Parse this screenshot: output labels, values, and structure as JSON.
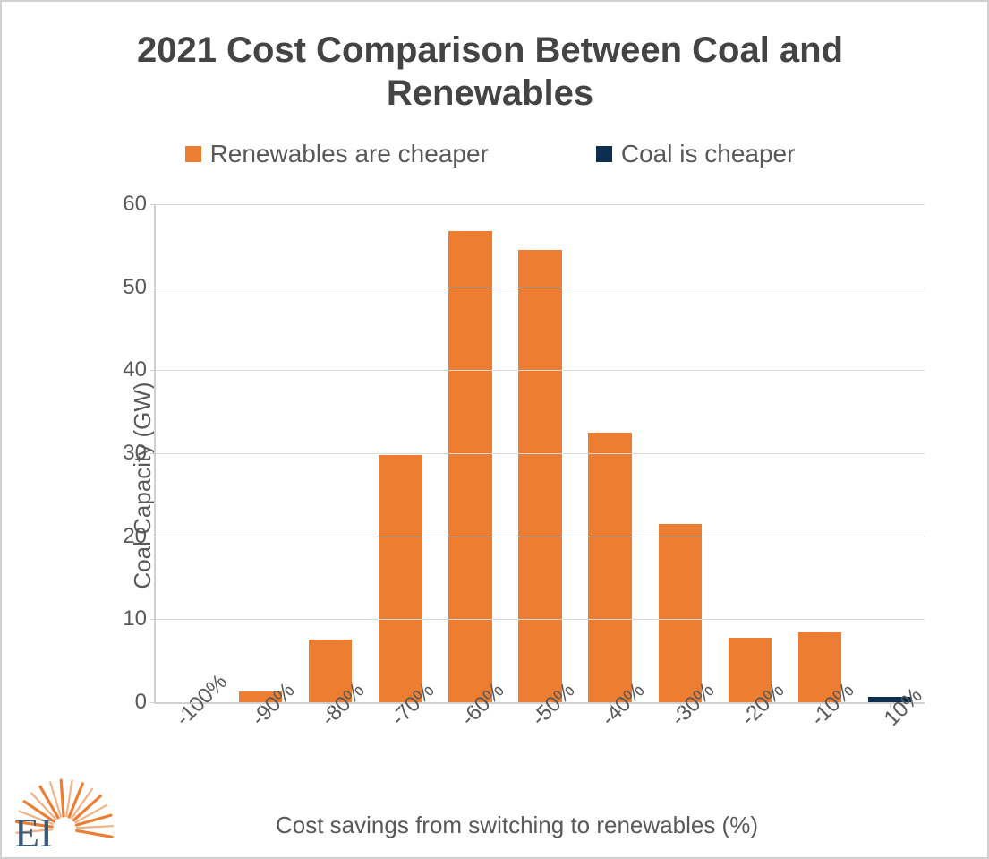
{
  "chart": {
    "type": "bar",
    "title": "2021 Cost Comparison Between Coal and Renewables",
    "title_fontsize": 40,
    "title_color": "#444444",
    "ylabel": "Coal Capacity (GW)",
    "xlabel": "Cost savings from switching to renewables (%)",
    "axis_label_fontsize": 26,
    "tick_fontsize": 24,
    "axis_label_color": "#595959",
    "background_color": "#ffffff",
    "border_color": "#d0d0d0",
    "grid_color": "#d9d9d9",
    "ylim": [
      0,
      60
    ],
    "ytick_step": 10,
    "yticks": [
      0,
      10,
      20,
      30,
      40,
      50,
      60
    ],
    "categories": [
      "-100%",
      "-90%",
      "-80%",
      "-70%",
      "-60%",
      "-50%",
      "-40%",
      "-30%",
      "-20%",
      "-10%",
      "10%"
    ],
    "series": [
      {
        "name": "Renewables are cheaper",
        "color": "#ed7d31",
        "values": [
          0,
          1.3,
          7.6,
          29.8,
          56.8,
          54.5,
          32.5,
          21.5,
          7.8,
          8.4,
          0
        ]
      },
      {
        "name": "Coal is cheaper",
        "color": "#0d2e4f",
        "values": [
          0,
          0,
          0,
          0,
          0,
          0,
          0,
          0,
          0,
          0,
          0.6
        ]
      }
    ],
    "bar_width": 0.62,
    "legend_fontsize": 28,
    "legend_position": "top"
  },
  "logo": {
    "text": "EI",
    "rays_color_outer": "#ed7d31",
    "rays_color_mid": "#f4b183",
    "text_color": "#3b5a78"
  }
}
